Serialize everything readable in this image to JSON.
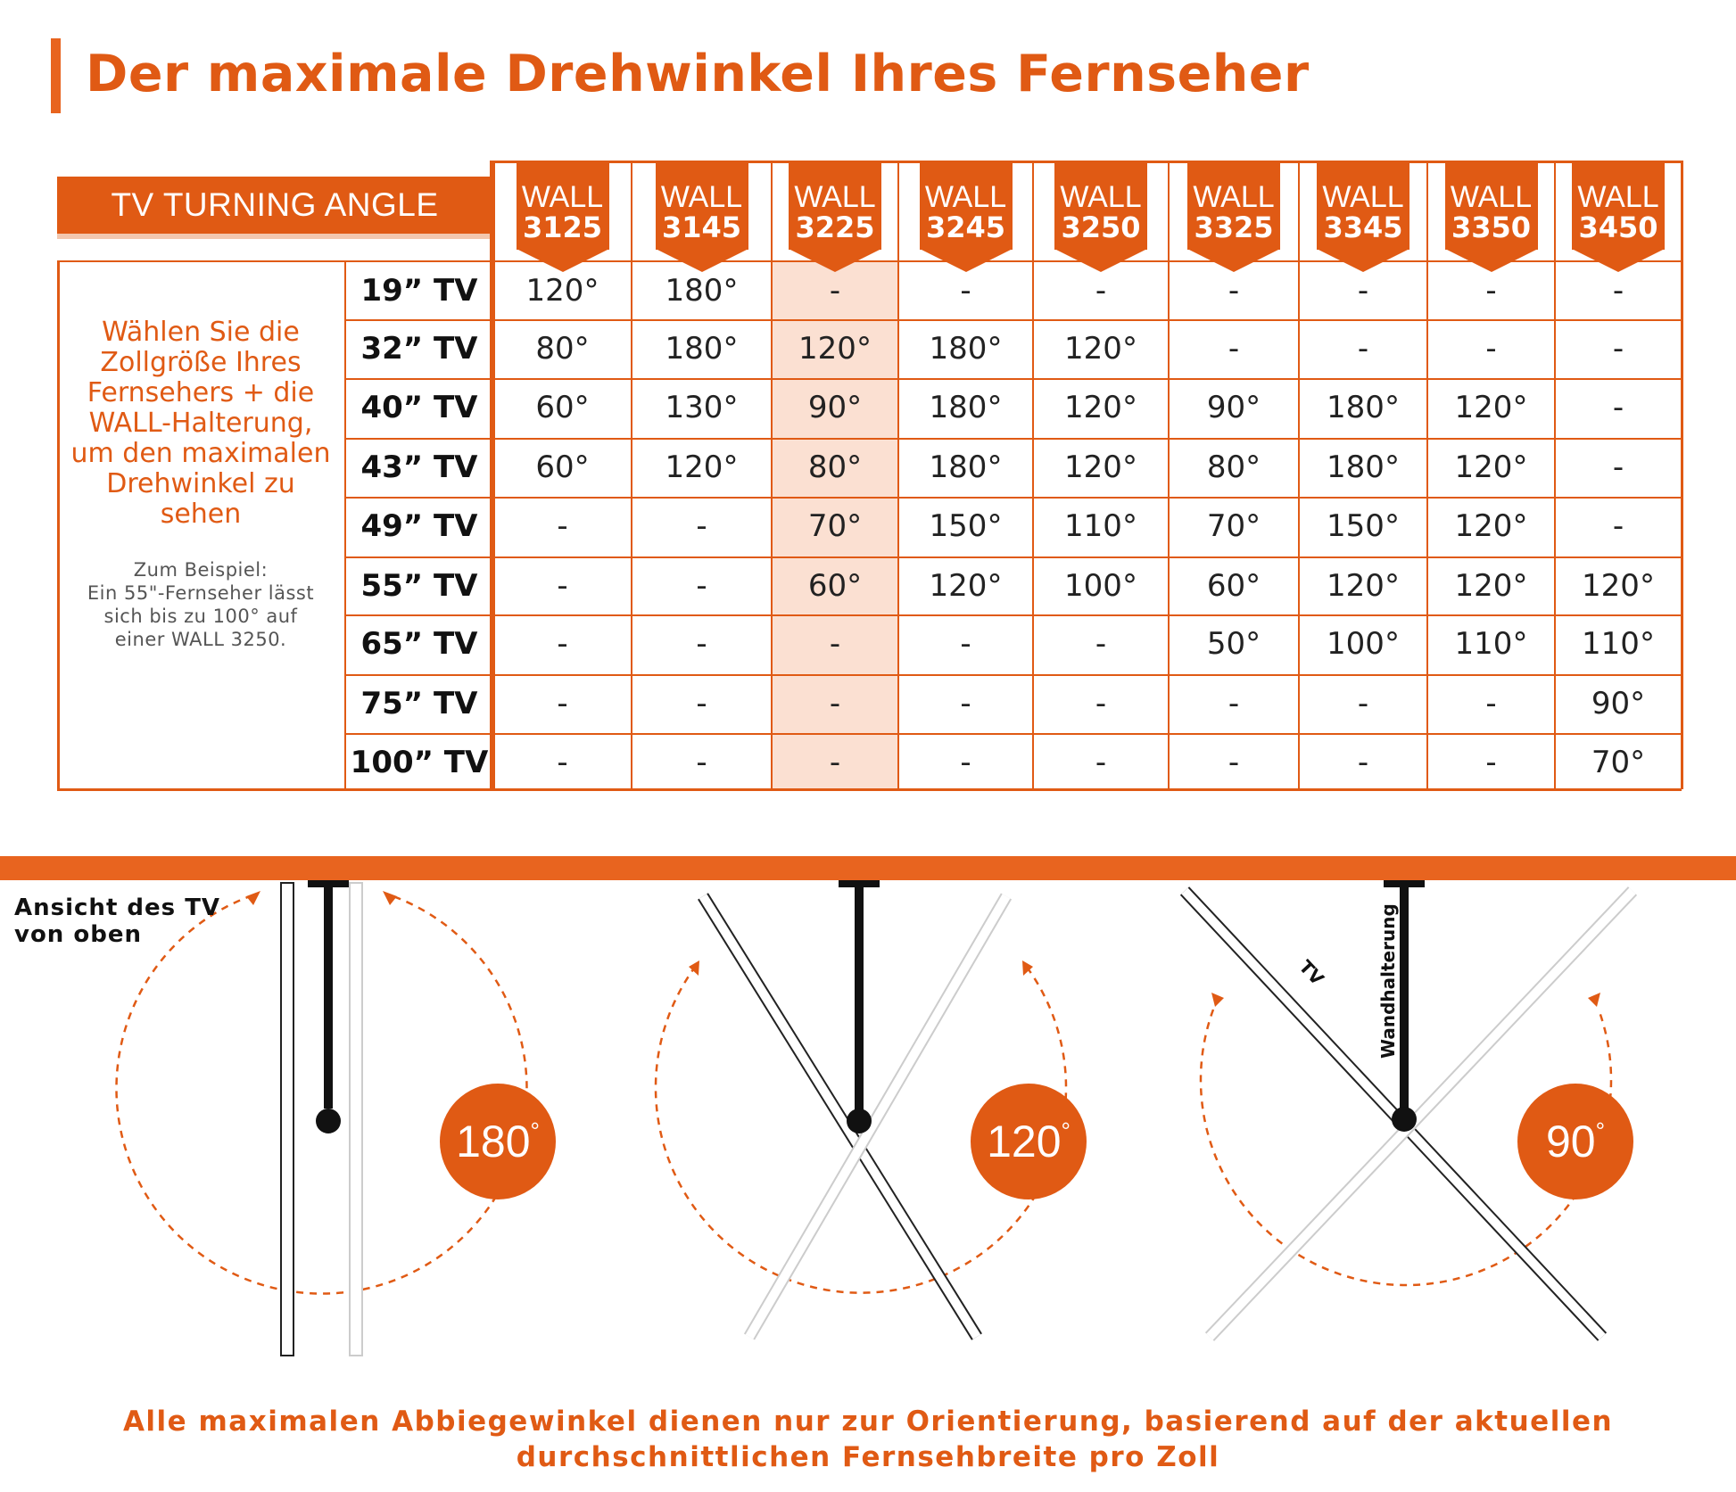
{
  "title": "Der maximale Drehwinkel Ihres Fernseher",
  "table": {
    "corner_label": "TV TURNING ANGLE",
    "models": [
      {
        "line1": "WALL",
        "line2": "3125"
      },
      {
        "line1": "WALL",
        "line2": "3145"
      },
      {
        "line1": "WALL",
        "line2": "3225"
      },
      {
        "line1": "WALL",
        "line2": "3245"
      },
      {
        "line1": "WALL",
        "line2": "3250"
      },
      {
        "line1": "WALL",
        "line2": "3325"
      },
      {
        "line1": "WALL",
        "line2": "3345"
      },
      {
        "line1": "WALL",
        "line2": "3350"
      },
      {
        "line1": "WALL",
        "line2": "3450"
      }
    ],
    "highlighted_model": "3225",
    "rows": [
      {
        "size": "19” TV",
        "values": [
          "120°",
          "180°",
          "-",
          "-",
          "-",
          "-",
          "-",
          "-",
          "-"
        ]
      },
      {
        "size": "32” TV",
        "values": [
          "80°",
          "180°",
          "120°",
          "180°",
          "120°",
          "-",
          "-",
          "-",
          "-"
        ]
      },
      {
        "size": "40” TV",
        "values": [
          "60°",
          "130°",
          "90°",
          "180°",
          "120°",
          "90°",
          "180°",
          "120°",
          "-"
        ]
      },
      {
        "size": "43” TV",
        "values": [
          "60°",
          "120°",
          "80°",
          "180°",
          "120°",
          "80°",
          "180°",
          "120°",
          "-"
        ]
      },
      {
        "size": "49” TV",
        "values": [
          "-",
          "-",
          "70°",
          "150°",
          "110°",
          "70°",
          "150°",
          "120°",
          "-"
        ]
      },
      {
        "size": "55” TV",
        "values": [
          "-",
          "-",
          "60°",
          "120°",
          "100°",
          "60°",
          "120°",
          "120°",
          "120°"
        ]
      },
      {
        "size": "65” TV",
        "values": [
          "-",
          "-",
          "-",
          "-",
          "-",
          "50°",
          "100°",
          "110°",
          "110°"
        ]
      },
      {
        "size": "75” TV",
        "values": [
          "-",
          "-",
          "-",
          "-",
          "-",
          "-",
          "-",
          "-",
          "90°"
        ]
      },
      {
        "size": "100” TV",
        "values": [
          "-",
          "-",
          "-",
          "-",
          "-",
          "-",
          "-",
          "-",
          "70°"
        ]
      }
    ],
    "instruction_lines": [
      "Wählen Sie die",
      "Zollgröße Ihres",
      "Fernsehers + die",
      "WALL-Halterung,",
      "um den maximalen",
      "Drehwinkel zu",
      "sehen"
    ],
    "example_lines": [
      "Zum Beispiel:",
      "Ein 55\"-Fernseher lässt",
      "sich bis zu 100° auf",
      "einer WALL 3250."
    ]
  },
  "diagram": {
    "view_label_lines": [
      "Ansicht des TV",
      "von oben"
    ],
    "tv_label": "TV",
    "mount_label": "Wandhalterung",
    "angles": [
      {
        "value": "180",
        "unit": "°"
      },
      {
        "value": "120",
        "unit": "°"
      },
      {
        "value": "90",
        "unit": "°"
      }
    ],
    "accent_color": "#e05a14"
  },
  "footnote_lines": [
    "Alle maximalen Abbiegewinkel dienen nur zur Orientierung, basierend auf der aktuellen",
    "durchschnittlichen Fernsehbreite pro Zoll"
  ]
}
